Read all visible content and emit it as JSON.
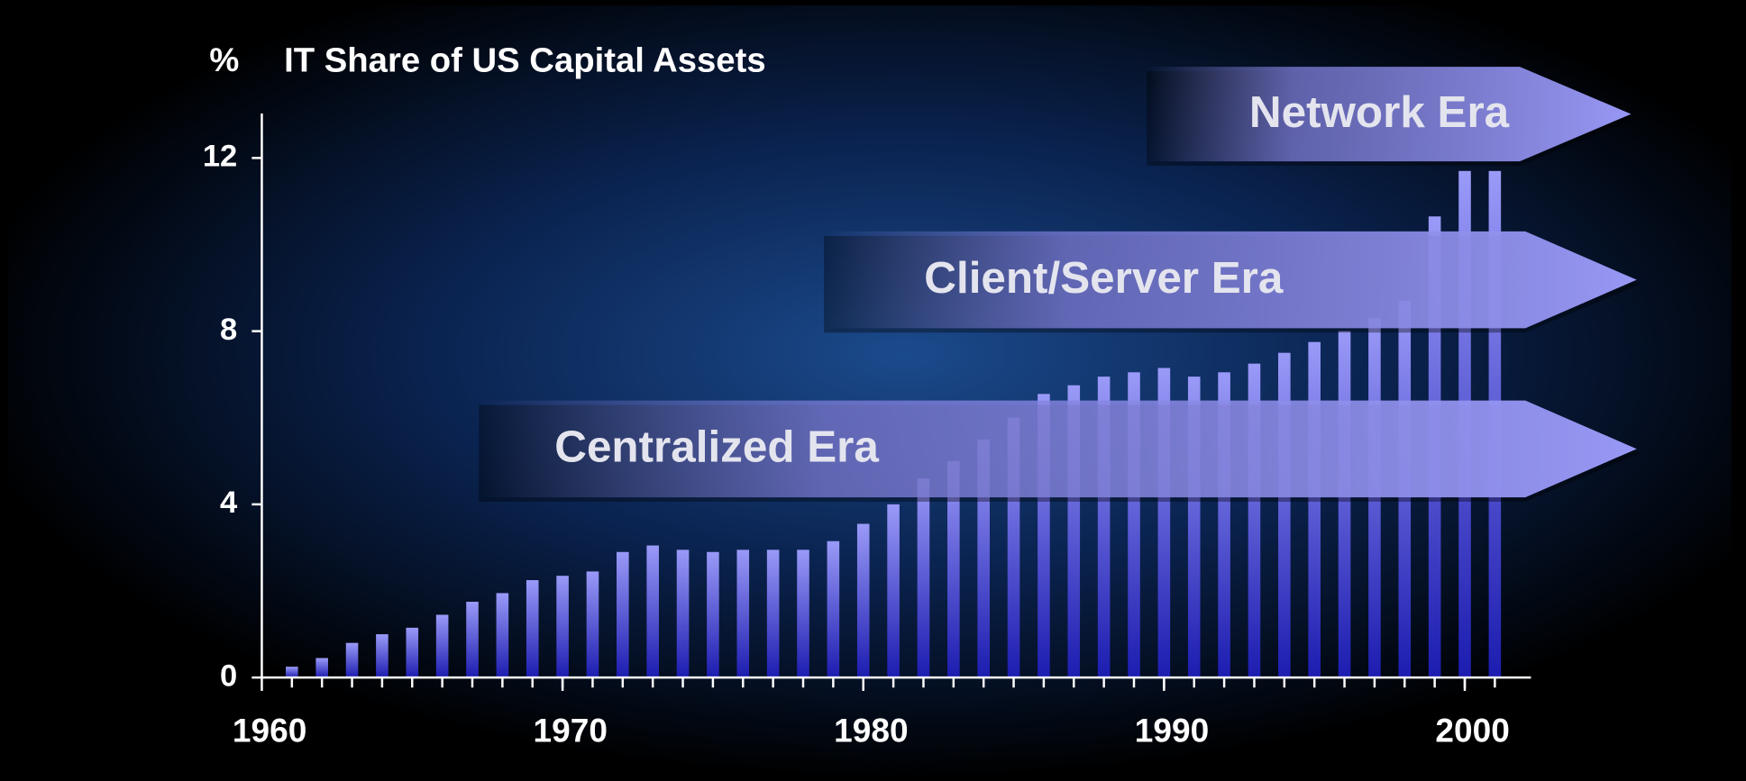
{
  "chart_data": {
    "type": "bar",
    "title": "IT Share of US Capital Assets",
    "y_label": "%",
    "x": [
      1961,
      1962,
      1963,
      1964,
      1965,
      1966,
      1967,
      1968,
      1969,
      1970,
      1971,
      1972,
      1973,
      1974,
      1975,
      1976,
      1977,
      1978,
      1979,
      1980,
      1981,
      1982,
      1983,
      1984,
      1985,
      1986,
      1987,
      1988,
      1989,
      1990,
      1991,
      1992,
      1993,
      1994,
      1995,
      1996,
      1997,
      1998,
      1999,
      2000,
      2001
    ],
    "values": [
      0.25,
      0.45,
      0.8,
      1.0,
      1.15,
      1.45,
      1.75,
      1.95,
      2.25,
      2.35,
      2.45,
      2.9,
      3.05,
      2.95,
      2.9,
      2.95,
      2.95,
      2.95,
      3.15,
      3.55,
      4.0,
      4.6,
      5.0,
      5.5,
      6.0,
      6.55,
      6.75,
      6.95,
      7.05,
      7.15,
      6.95,
      7.05,
      7.25,
      7.5,
      7.75,
      8.0,
      8.3,
      8.7,
      10.65,
      11.7,
      11.7
    ],
    "color": "#8a8af5",
    "xlim": [
      1960,
      2002.2
    ],
    "xticks": [
      1960,
      1970,
      1980,
      1990,
      2000
    ],
    "ylim": [
      0,
      13
    ],
    "yticks": [
      0,
      4,
      8,
      12
    ],
    "annotations": [
      {
        "text": "Network Era"
      },
      {
        "text": "Client/Server Era"
      },
      {
        "text": "Centralized Era"
      }
    ]
  }
}
